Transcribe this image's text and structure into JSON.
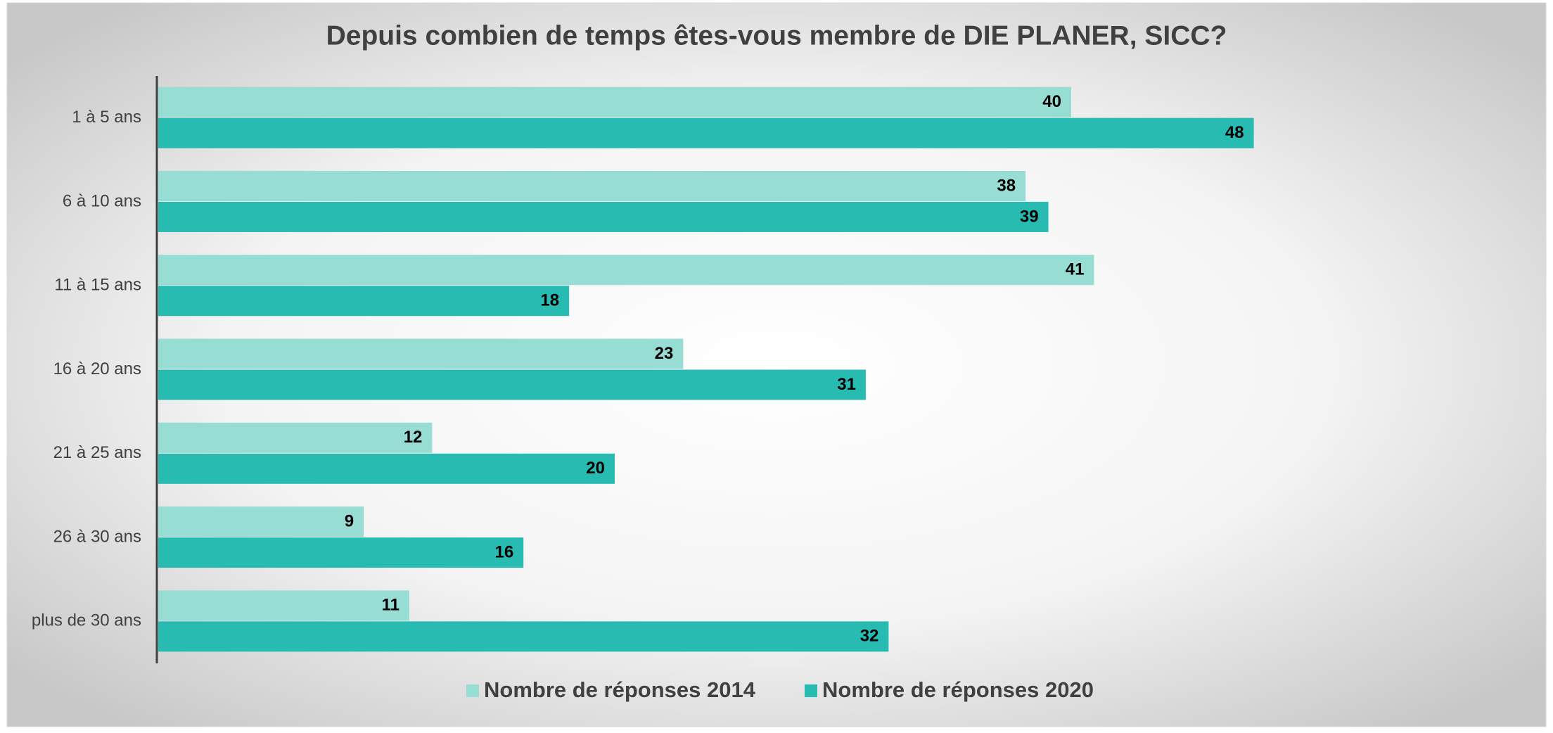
{
  "chart_data": {
    "type": "hbar",
    "title": "Depuis combien de temps êtes-vous membre de DIE PLANER, SICC?",
    "categories": [
      "1 à 5 ans",
      "6 à 10 ans",
      "11 à 15 ans",
      "16 à 20 ans",
      "21 à 25 ans",
      "26 à 30 ans",
      "plus de 30 ans"
    ],
    "series": [
      {
        "name": "Nombre de réponses 2014",
        "color": "#97ddd4",
        "values": [
          40,
          38,
          41,
          23,
          12,
          9,
          11
        ]
      },
      {
        "name": "Nombre de réponses 2020",
        "color": "#27bbb1",
        "values": [
          48,
          39,
          18,
          31,
          20,
          16,
          32
        ]
      }
    ],
    "xlim": [
      0,
      60
    ]
  }
}
